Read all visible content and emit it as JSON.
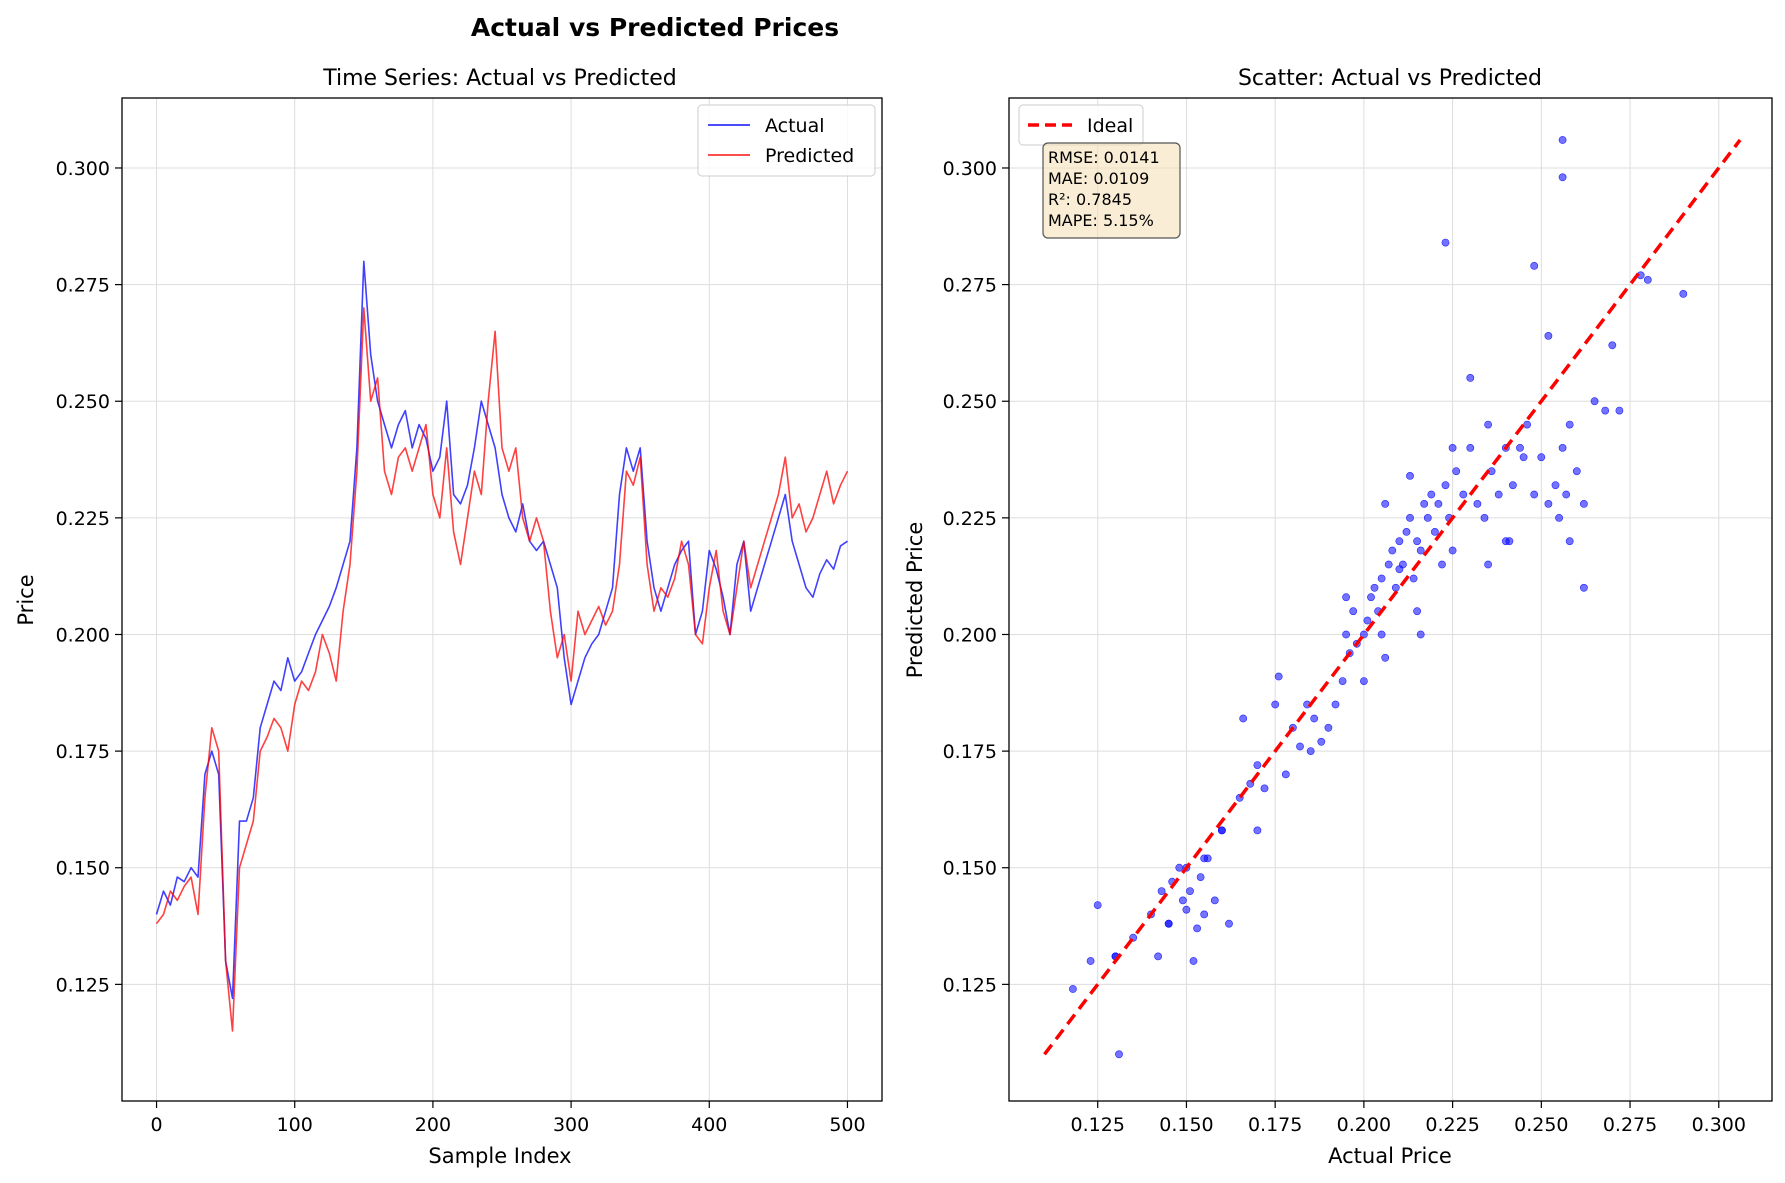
{
  "figure": {
    "suptitle": "Actual vs Predicted Prices"
  },
  "colors": {
    "actual": "#0000ff",
    "predicted": "#ff0000",
    "grid": "#dddddd",
    "stats_box_fill": "#f5deb3",
    "stats_box_edge": "#555555"
  },
  "chart_data": [
    {
      "type": "line",
      "title": "Time Series: Actual vs Predicted",
      "xlabel": "Sample Index",
      "ylabel": "Price",
      "xlim": [
        -25,
        525
      ],
      "ylim": [
        0.1,
        0.315
      ],
      "xticks": [
        0,
        100,
        200,
        300,
        400,
        500
      ],
      "xtick_labels": [
        "0",
        "100",
        "200",
        "300",
        "400",
        "500"
      ],
      "yticks": [
        0.125,
        0.15,
        0.175,
        0.2,
        0.225,
        0.25,
        0.275,
        0.3
      ],
      "ytick_labels": [
        "0.125",
        "0.150",
        "0.175",
        "0.200",
        "0.225",
        "0.250",
        "0.275",
        "0.300"
      ],
      "grid": true,
      "legend": "top-right",
      "x_step": 5,
      "series": [
        {
          "name": "Actual",
          "values": [
            0.14,
            0.145,
            0.142,
            0.148,
            0.147,
            0.15,
            0.148,
            0.17,
            0.175,
            0.17,
            0.13,
            0.122,
            0.16,
            0.16,
            0.165,
            0.18,
            0.185,
            0.19,
            0.188,
            0.195,
            0.19,
            0.192,
            0.196,
            0.2,
            0.203,
            0.206,
            0.21,
            0.215,
            0.22,
            0.24,
            0.28,
            0.26,
            0.25,
            0.245,
            0.24,
            0.245,
            0.248,
            0.24,
            0.245,
            0.242,
            0.235,
            0.238,
            0.25,
            0.23,
            0.228,
            0.232,
            0.24,
            0.25,
            0.245,
            0.24,
            0.23,
            0.225,
            0.222,
            0.228,
            0.22,
            0.218,
            0.22,
            0.215,
            0.21,
            0.195,
            0.185,
            0.19,
            0.195,
            0.198,
            0.2,
            0.205,
            0.21,
            0.23,
            0.24,
            0.235,
            0.24,
            0.22,
            0.21,
            0.205,
            0.21,
            0.215,
            0.218,
            0.22,
            0.2,
            0.205,
            0.218,
            0.214,
            0.208,
            0.2,
            0.215,
            0.22,
            0.205,
            0.21,
            0.215,
            0.22,
            0.225,
            0.23,
            0.22,
            0.215,
            0.21,
            0.208,
            0.213,
            0.216,
            0.214,
            0.219,
            0.22
          ]
        },
        {
          "name": "Predicted",
          "values": [
            0.138,
            0.14,
            0.145,
            0.143,
            0.146,
            0.148,
            0.14,
            0.165,
            0.18,
            0.175,
            0.13,
            0.115,
            0.15,
            0.155,
            0.16,
            0.175,
            0.178,
            0.182,
            0.18,
            0.175,
            0.185,
            0.19,
            0.188,
            0.192,
            0.2,
            0.196,
            0.19,
            0.205,
            0.215,
            0.235,
            0.27,
            0.25,
            0.255,
            0.235,
            0.23,
            0.238,
            0.24,
            0.235,
            0.24,
            0.245,
            0.23,
            0.225,
            0.24,
            0.222,
            0.215,
            0.225,
            0.235,
            0.23,
            0.25,
            0.265,
            0.24,
            0.235,
            0.24,
            0.225,
            0.22,
            0.225,
            0.22,
            0.205,
            0.195,
            0.2,
            0.19,
            0.205,
            0.2,
            0.203,
            0.206,
            0.202,
            0.205,
            0.215,
            0.235,
            0.232,
            0.238,
            0.215,
            0.205,
            0.21,
            0.208,
            0.212,
            0.22,
            0.215,
            0.2,
            0.198,
            0.21,
            0.218,
            0.205,
            0.2,
            0.21,
            0.22,
            0.21,
            0.215,
            0.22,
            0.225,
            0.23,
            0.238,
            0.225,
            0.228,
            0.222,
            0.225,
            0.23,
            0.235,
            0.228,
            0.232,
            0.235
          ]
        }
      ]
    },
    {
      "type": "scatter",
      "title": "Scatter: Actual vs Predicted",
      "xlabel": "Actual Price",
      "ylabel": "Predicted Price",
      "xlim": [
        0.1,
        0.315
      ],
      "ylim": [
        0.1,
        0.315
      ],
      "xticks": [
        0.125,
        0.15,
        0.175,
        0.2,
        0.225,
        0.25,
        0.275,
        0.3
      ],
      "xtick_labels": [
        "0.125",
        "0.150",
        "0.175",
        "0.200",
        "0.225",
        "0.250",
        "0.275",
        "0.300"
      ],
      "yticks": [
        0.125,
        0.15,
        0.175,
        0.2,
        0.225,
        0.25,
        0.275,
        0.3
      ],
      "ytick_labels": [
        "0.125",
        "0.150",
        "0.175",
        "0.200",
        "0.225",
        "0.250",
        "0.275",
        "0.300"
      ],
      "grid": true,
      "legend": "top-left",
      "ideal_line": {
        "name": "Ideal",
        "from": [
          0.11,
          0.11
        ],
        "to": [
          0.306,
          0.306
        ]
      },
      "stats": [
        "RMSE: 0.0141",
        "MAE: 0.0109",
        "R²: 0.7845",
        "MAPE: 5.15%"
      ],
      "points": {
        "x": [
          0.118,
          0.123,
          0.125,
          0.13,
          0.131,
          0.135,
          0.14,
          0.142,
          0.143,
          0.145,
          0.146,
          0.148,
          0.149,
          0.15,
          0.151,
          0.152,
          0.153,
          0.154,
          0.155,
          0.156,
          0.158,
          0.16,
          0.162,
          0.165,
          0.166,
          0.168,
          0.17,
          0.172,
          0.175,
          0.176,
          0.178,
          0.18,
          0.182,
          0.184,
          0.185,
          0.186,
          0.188,
          0.19,
          0.192,
          0.194,
          0.195,
          0.196,
          0.197,
          0.198,
          0.2,
          0.201,
          0.202,
          0.203,
          0.204,
          0.205,
          0.206,
          0.207,
          0.208,
          0.209,
          0.21,
          0.211,
          0.212,
          0.213,
          0.214,
          0.215,
          0.216,
          0.217,
          0.218,
          0.219,
          0.22,
          0.221,
          0.222,
          0.223,
          0.224,
          0.225,
          0.226,
          0.228,
          0.23,
          0.232,
          0.234,
          0.235,
          0.236,
          0.238,
          0.24,
          0.241,
          0.242,
          0.244,
          0.245,
          0.246,
          0.248,
          0.25,
          0.252,
          0.254,
          0.255,
          0.256,
          0.257,
          0.258,
          0.26,
          0.262,
          0.265,
          0.268,
          0.27,
          0.272,
          0.278,
          0.28,
          0.29,
          0.256,
          0.256,
          0.223,
          0.248,
          0.13,
          0.206,
          0.213,
          0.216,
          0.195,
          0.21,
          0.205,
          0.2,
          0.215,
          0.225,
          0.23,
          0.235,
          0.24,
          0.252,
          0.258,
          0.262,
          0.17,
          0.16,
          0.155,
          0.15,
          0.145
        ],
        "y": [
          0.124,
          0.13,
          0.142,
          0.131,
          0.11,
          0.135,
          0.14,
          0.131,
          0.145,
          0.138,
          0.147,
          0.15,
          0.143,
          0.141,
          0.145,
          0.13,
          0.137,
          0.148,
          0.14,
          0.152,
          0.143,
          0.158,
          0.138,
          0.165,
          0.182,
          0.168,
          0.172,
          0.167,
          0.185,
          0.191,
          0.17,
          0.18,
          0.176,
          0.185,
          0.175,
          0.182,
          0.177,
          0.18,
          0.185,
          0.19,
          0.2,
          0.196,
          0.205,
          0.198,
          0.2,
          0.203,
          0.208,
          0.21,
          0.205,
          0.212,
          0.195,
          0.215,
          0.218,
          0.21,
          0.22,
          0.215,
          0.222,
          0.225,
          0.212,
          0.22,
          0.218,
          0.228,
          0.225,
          0.23,
          0.222,
          0.228,
          0.215,
          0.232,
          0.225,
          0.218,
          0.235,
          0.23,
          0.24,
          0.228,
          0.225,
          0.245,
          0.235,
          0.23,
          0.24,
          0.22,
          0.232,
          0.24,
          0.238,
          0.245,
          0.23,
          0.238,
          0.228,
          0.232,
          0.225,
          0.24,
          0.23,
          0.245,
          0.235,
          0.228,
          0.25,
          0.248,
          0.262,
          0.248,
          0.277,
          0.276,
          0.273,
          0.306,
          0.298,
          0.284,
          0.279,
          0.131,
          0.228,
          0.234,
          0.2,
          0.208,
          0.214,
          0.2,
          0.19,
          0.205,
          0.24,
          0.255,
          0.215,
          0.22,
          0.264,
          0.22,
          0.21,
          0.158,
          0.158,
          0.152,
          0.15,
          0.138
        ]
      }
    }
  ]
}
